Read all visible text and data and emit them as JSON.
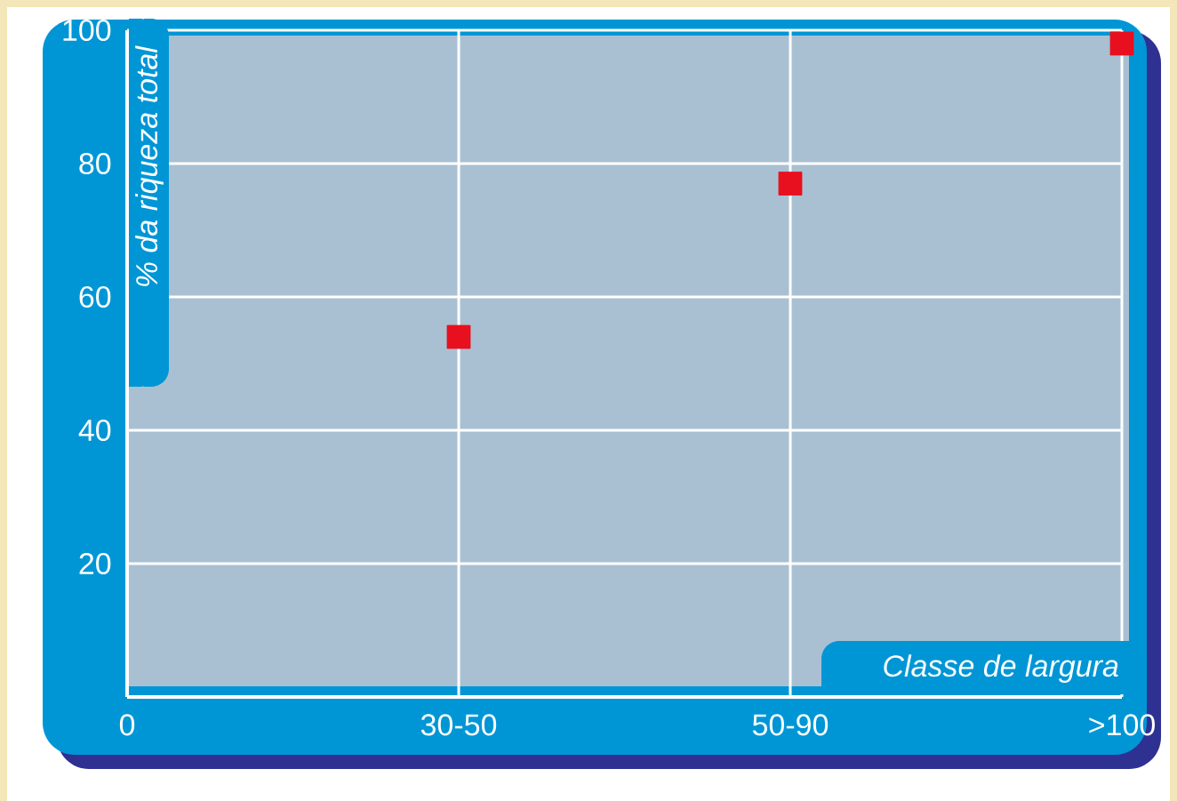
{
  "chart_data": {
    "type": "scatter",
    "xlabel": "Classe de largura",
    "ylabel": "% da riqueza total",
    "categories": [
      "0",
      "30-50",
      "50-90",
      ">100"
    ],
    "values": [
      null,
      54,
      77,
      98
    ],
    "color": "#e8101e",
    "marker": "square",
    "ylim": [
      0,
      100
    ],
    "yticks": [
      20,
      40,
      60,
      80,
      100
    ],
    "grid": true
  }
}
